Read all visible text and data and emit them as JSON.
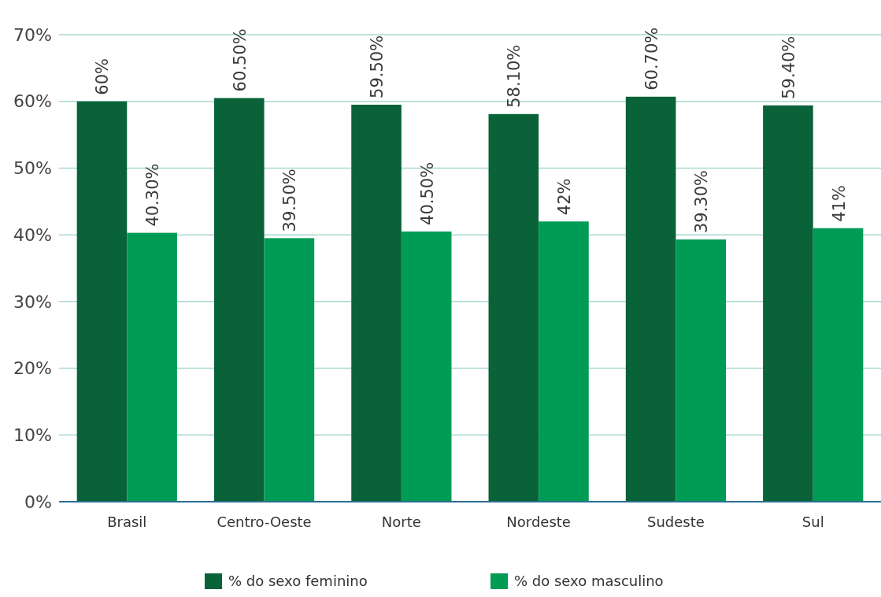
{
  "chart_data": {
    "type": "bar",
    "categories": [
      "Brasil",
      "Centro-Oeste",
      "Norte",
      "Nordeste",
      "Sudeste",
      "Sul"
    ],
    "series": [
      {
        "name": "% do sexo feminino",
        "color": "#0a6239",
        "values": [
          60,
          60.5,
          59.5,
          58.1,
          60.7,
          59.4
        ],
        "value_labels": [
          "60%",
          "60.50%",
          "59.50%",
          "58.10%",
          "60.70%",
          "59.40%"
        ]
      },
      {
        "name": "% do sexo masculino",
        "color": "#009b55",
        "values": [
          40.3,
          39.5,
          40.5,
          42,
          39.3,
          41
        ],
        "value_labels": [
          "40.30%",
          "39.50%",
          "40.50%",
          "42%",
          "39.30%",
          "41%"
        ]
      }
    ],
    "ylim": [
      0,
      70
    ],
    "yticks": [
      {
        "value": 0,
        "label": "0%"
      },
      {
        "value": 10,
        "label": "10%"
      },
      {
        "value": 20,
        "label": "20%"
      },
      {
        "value": 30,
        "label": "30%"
      },
      {
        "value": 40,
        "label": "40%"
      },
      {
        "value": 50,
        "label": "50%"
      },
      {
        "value": 60,
        "label": "60%"
      },
      {
        "value": 70,
        "label": "70%"
      }
    ],
    "grid": "y",
    "legend": "bottom"
  }
}
